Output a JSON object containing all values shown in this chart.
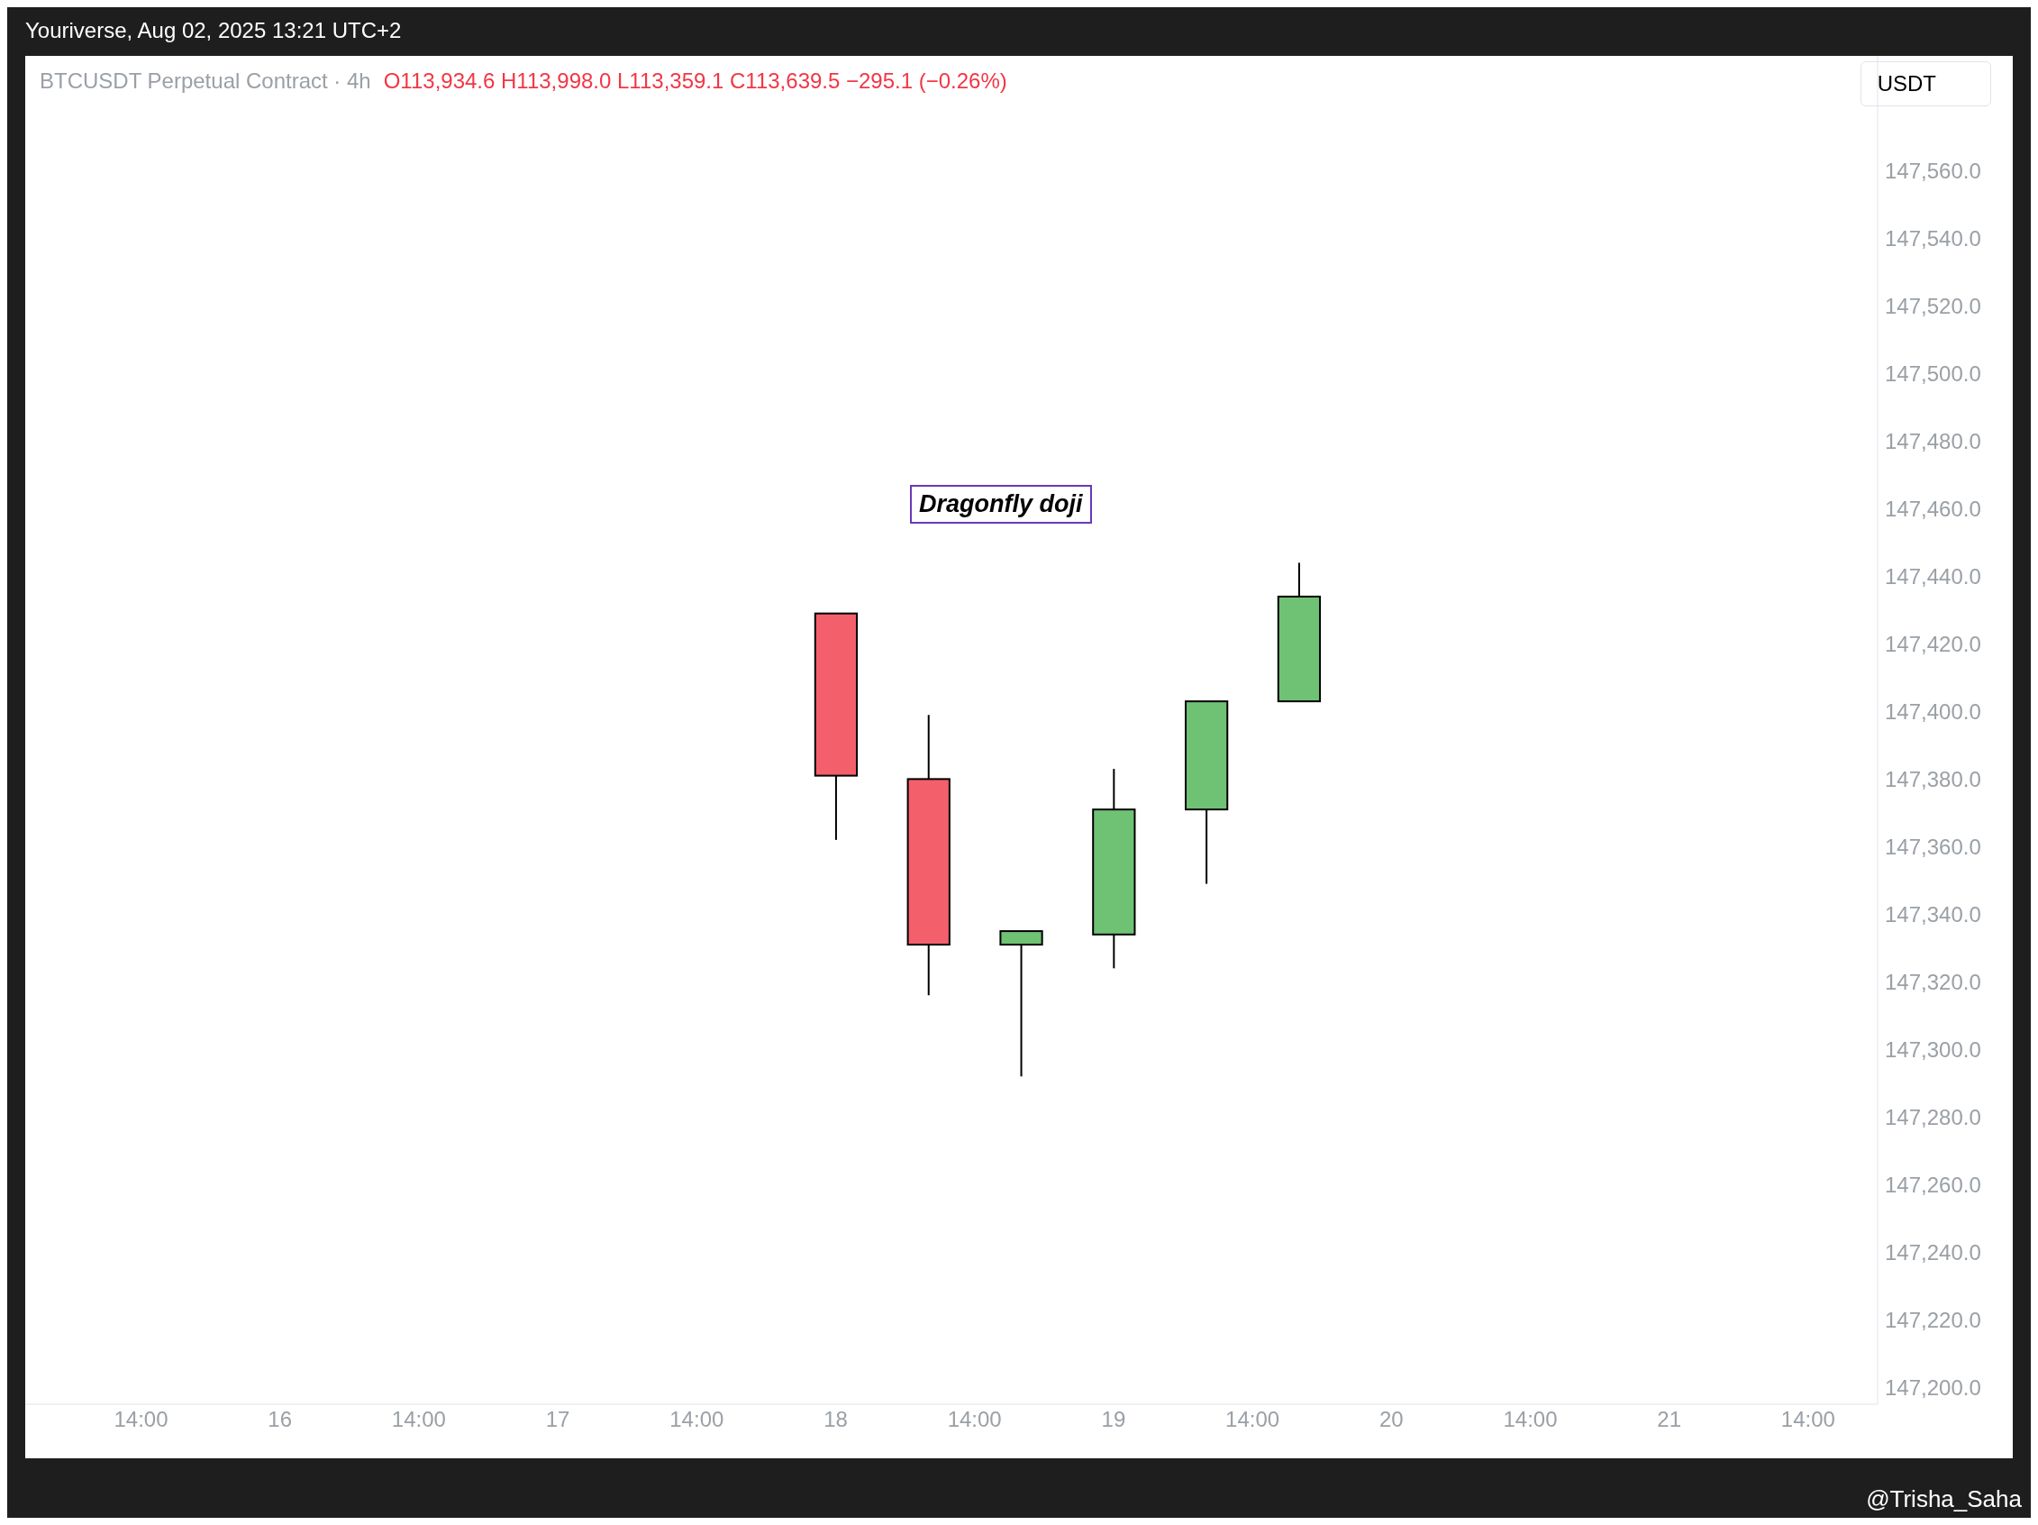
{
  "chart_data": {
    "type": "candlestick",
    "title": "BTCUSDT Perpetual Contract · 4h",
    "subtitle": "O113,934.6 H113,998.0 L113,359.1 C113,639.5 −295.1 (−0.26%)",
    "categories": [
      null,
      null,
      "14:00",
      null,
      null,
      "16",
      null,
      null,
      "14:00",
      null,
      null,
      "17",
      null,
      null,
      "14:00",
      null,
      null,
      "18",
      null,
      null,
      "14:00",
      null,
      null,
      "19",
      null,
      null,
      "14:00",
      null,
      null,
      "20",
      null,
      null,
      "14:00",
      null,
      null,
      "21",
      null,
      null,
      "14:00",
      null
    ],
    "ohlc": [
      null,
      null,
      null,
      null,
      null,
      null,
      null,
      null,
      null,
      null,
      null,
      null,
      null,
      null,
      null,
      null,
      null,
      [
        147429,
        147429,
        147362,
        147381
      ],
      null,
      [
        147380,
        147399,
        147316,
        147331
      ],
      null,
      [
        147331,
        147335,
        147292,
        147335
      ],
      null,
      [
        147334,
        147383,
        147324,
        147371
      ],
      null,
      [
        147371,
        147403,
        147349,
        147403
      ],
      null,
      [
        147403,
        147444,
        147403,
        147434
      ],
      null,
      null,
      null,
      null,
      null,
      null,
      null,
      null,
      null,
      null,
      null,
      null
    ],
    "colors": [
      null,
      null,
      null,
      null,
      null,
      null,
      null,
      null,
      null,
      null,
      null,
      null,
      null,
      null,
      null,
      null,
      null,
      "#f45f6c",
      null,
      "#f45f6c",
      null,
      "#6fc174",
      null,
      "#6fc174",
      null,
      "#6fc174",
      null,
      "#6fc174",
      null,
      null,
      null,
      null,
      null,
      null,
      null,
      null,
      null,
      null,
      null,
      null
    ],
    "ylim": [
      147195,
      147594
    ],
    "yticks": [
      {
        "value": 147200,
        "label": "147,200.0"
      },
      {
        "value": 147220,
        "label": "147,220.0"
      },
      {
        "value": 147240,
        "label": "147,240.0"
      },
      {
        "value": 147260,
        "label": "147,260.0"
      },
      {
        "value": 147280,
        "label": "147,280.0"
      },
      {
        "value": 147300,
        "label": "147,300.0"
      },
      {
        "value": 147320,
        "label": "147,320.0"
      },
      {
        "value": 147340,
        "label": "147,340.0"
      },
      {
        "value": 147360,
        "label": "147,360.0"
      },
      {
        "value": 147380,
        "label": "147,380.0"
      },
      {
        "value": 147400,
        "label": "147,400.0"
      },
      {
        "value": 147420,
        "label": "147,420.0"
      },
      {
        "value": 147440,
        "label": "147,440.0"
      },
      {
        "value": 147460,
        "label": "147,460.0"
      },
      {
        "value": 147480,
        "label": "147,480.0"
      },
      {
        "value": 147500,
        "label": "147,500.0"
      },
      {
        "value": 147520,
        "label": "147,520.0"
      },
      {
        "value": 147540,
        "label": "147,540.0"
      },
      {
        "value": 147560,
        "label": "147,560.0"
      }
    ],
    "annotations": [
      "Dragonfly doji",
      "Youriverse, Aug 02, 2025 13:21 UTC+2",
      "USDT",
      "@Trisha_Saha"
    ]
  }
}
